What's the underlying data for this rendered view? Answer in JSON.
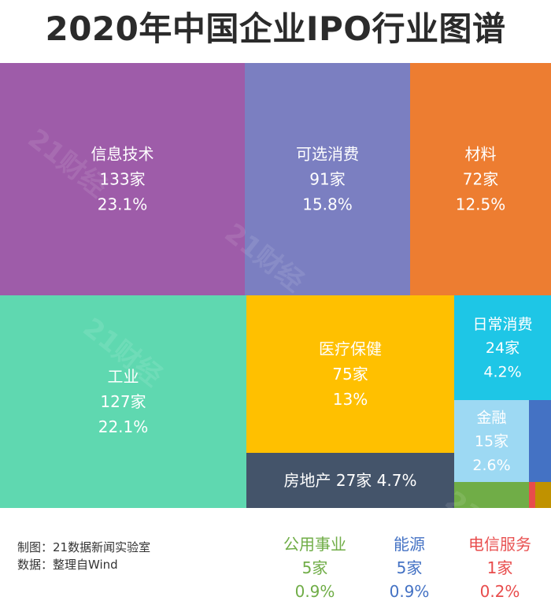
{
  "title": "2020年中国企业IPO行业图谱",
  "colors": {
    "信息技术": "#9e5ca9",
    "可选消费": "#7b7fc1",
    "材料": "#ed7d31",
    "工业": "#5fd8b0",
    "医疗保健": "#ffc000",
    "日常消费": "#1ec6e6",
    "房地产": "#44546a",
    "金融": "#9dd9f3",
    "公用事业": "#70ad47",
    "能源": "#4472c4",
    "电信服务": "#e84c4c",
    "other_small": "#c09200"
  },
  "chart_data": {
    "type": "treemap",
    "unit": "家",
    "items": [
      {
        "name": "信息技术",
        "count_label": "133家",
        "pct_label": "23.1%",
        "value": 133,
        "pct": 23.1
      },
      {
        "name": "可选消费",
        "count_label": "91家",
        "pct_label": "15.8%",
        "value": 91,
        "pct": 15.8
      },
      {
        "name": "材料",
        "count_label": "72家",
        "pct_label": "12.5%",
        "value": 72,
        "pct": 12.5
      },
      {
        "name": "工业",
        "count_label": "127家",
        "pct_label": "22.1%",
        "value": 127,
        "pct": 22.1
      },
      {
        "name": "医疗保健",
        "count_label": "75家",
        "pct_label": "13%",
        "value": 75,
        "pct": 13
      },
      {
        "name": "日常消费",
        "count_label": "24家",
        "pct_label": "4.2%",
        "value": 24,
        "pct": 4.2
      },
      {
        "name": "房地产",
        "label": "房地产 27家 4.7%",
        "value": 27,
        "pct": 4.7
      },
      {
        "name": "金融",
        "count_label": "15家",
        "pct_label": "2.6%",
        "value": 15,
        "pct": 2.6
      },
      {
        "name": "公用事业",
        "count_label": "5家",
        "pct_label": "0.9%",
        "value": 5,
        "pct": 0.9
      },
      {
        "name": "能源",
        "count_label": "5家",
        "pct_label": "0.9%",
        "value": 5,
        "pct": 0.9
      },
      {
        "name": "电信服务",
        "count_label": "1家",
        "pct_label": "0.2%",
        "value": 1,
        "pct": 0.2
      }
    ]
  },
  "footer": {
    "credit": "制图：21数据新闻实验室",
    "source": "数据：整理自Wind"
  },
  "watermark": "21财经"
}
